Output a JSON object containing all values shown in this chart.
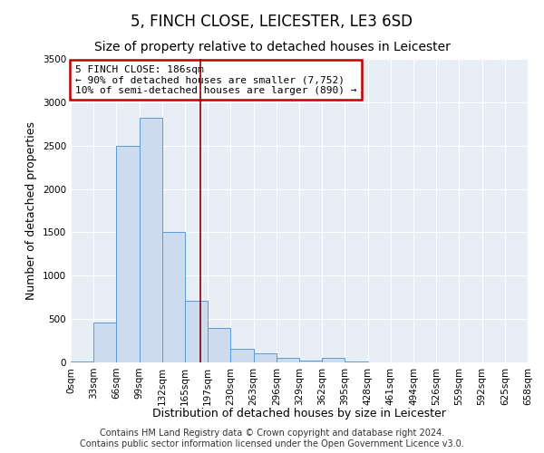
{
  "title": "5, FINCH CLOSE, LEICESTER, LE3 6SD",
  "subtitle": "Size of property relative to detached houses in Leicester",
  "xlabel": "Distribution of detached houses by size in Leicester",
  "ylabel": "Number of detached properties",
  "bar_values": [
    10,
    460,
    2500,
    2820,
    1500,
    710,
    400,
    155,
    100,
    50,
    20,
    50,
    10,
    0,
    0,
    0,
    0,
    0,
    0,
    0
  ],
  "bin_labels": [
    "0sqm",
    "33sqm",
    "66sqm",
    "99sqm",
    "132sqm",
    "165sqm",
    "197sqm",
    "230sqm",
    "263sqm",
    "296sqm",
    "329sqm",
    "362sqm",
    "395sqm",
    "428sqm",
    "461sqm",
    "494sqm",
    "526sqm",
    "559sqm",
    "592sqm",
    "625sqm",
    "658sqm"
  ],
  "bar_color": "#ccdcee",
  "bar_edge_color": "#5b9bd5",
  "vline_color": "#8b0000",
  "annotation_text": "5 FINCH CLOSE: 186sqm\n← 90% of detached houses are smaller (7,752)\n10% of semi-detached houses are larger (890) →",
  "annotation_box_color": "#ffffff",
  "annotation_box_edge": "#c00000",
  "ylim": [
    0,
    3500
  ],
  "yticks": [
    0,
    500,
    1000,
    1500,
    2000,
    2500,
    3000,
    3500
  ],
  "background_color": "#e8eef6",
  "footer_line1": "Contains HM Land Registry data © Crown copyright and database right 2024.",
  "footer_line2": "Contains public sector information licensed under the Open Government Licence v3.0.",
  "title_fontsize": 12,
  "subtitle_fontsize": 10,
  "xlabel_fontsize": 9,
  "ylabel_fontsize": 9,
  "tick_fontsize": 7.5,
  "footer_fontsize": 7
}
